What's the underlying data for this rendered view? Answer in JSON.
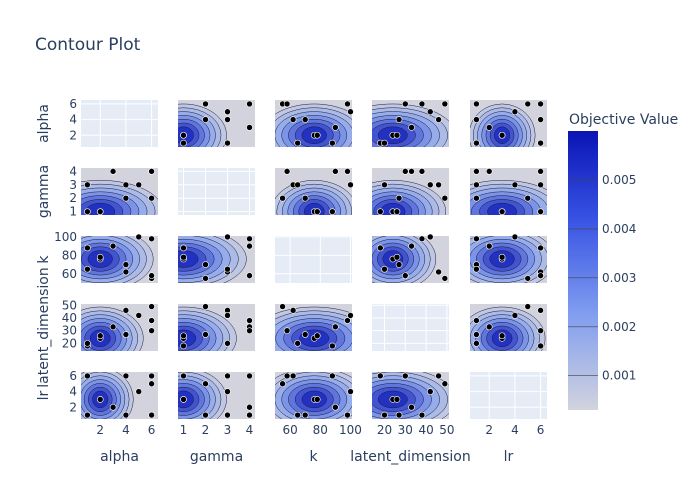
{
  "chart_data": {
    "type": "contour",
    "title": "Contour Plot",
    "params": [
      "alpha",
      "gamma",
      "k",
      "latent_dimension",
      "lr"
    ],
    "ranges": {
      "alpha": [
        0.5,
        6.5
      ],
      "gamma": [
        0.75,
        4.25
      ],
      "k": [
        50,
        101
      ],
      "latent_dimension": [
        14,
        51
      ],
      "lr": [
        0.5,
        6.5
      ]
    },
    "ticks": {
      "alpha": [
        2,
        4,
        6
      ],
      "gamma": [
        1,
        2,
        3,
        4
      ],
      "k": [
        60,
        80,
        100
      ],
      "latent_dimension": [
        20,
        30,
        40,
        50
      ],
      "lr": [
        2,
        4,
        6
      ]
    },
    "trials": [
      {
        "alpha": 2,
        "gamma": 1,
        "k": 76,
        "latent_dimension": 24,
        "lr": 3
      },
      {
        "alpha": 4,
        "gamma": 3,
        "k": 62,
        "latent_dimension": 46,
        "lr": 6
      },
      {
        "alpha": 6,
        "gamma": 4,
        "k": 98,
        "latent_dimension": 38,
        "lr": 1
      },
      {
        "alpha": 3,
        "gamma": 4,
        "k": 90,
        "latent_dimension": 33,
        "lr": 2
      },
      {
        "alpha": 6,
        "gamma": 2,
        "k": 55,
        "latent_dimension": 49,
        "lr": 5
      },
      {
        "alpha": 1,
        "gamma": 1,
        "k": 88,
        "latent_dimension": 18,
        "lr": 6
      },
      {
        "alpha": 4,
        "gamma": 2,
        "k": 70,
        "latent_dimension": 27,
        "lr": 1
      },
      {
        "alpha": 5,
        "gamma": 3,
        "k": 100,
        "latent_dimension": 42,
        "lr": 4
      },
      {
        "alpha": 2,
        "gamma": 1,
        "k": 78,
        "latent_dimension": 26,
        "lr": 3
      },
      {
        "alpha": 6,
        "gamma": 4,
        "k": 58,
        "latent_dimension": 30,
        "lr": 6
      },
      {
        "alpha": 1,
        "gamma": 3,
        "k": 65,
        "latent_dimension": 20,
        "lr": 1
      }
    ],
    "best": {
      "alpha": 2,
      "gamma": 1,
      "k": 76,
      "latent_dimension": 24,
      "lr": 3
    },
    "colorbar": {
      "title": "Objective Value",
      "ticks": [
        0.001,
        0.002,
        0.003,
        0.004,
        0.005
      ],
      "tick_labels": [
        "0.001",
        "0.002",
        "0.003",
        "0.004",
        "0.005"
      ],
      "range": [
        0.0003,
        0.006
      ]
    },
    "colors": {
      "low": "#d2d3dd",
      "high": "#0a14b4",
      "grid_bg": "#e5ecf6",
      "axis_text": "#2a3f5f",
      "marker": "#000000"
    }
  }
}
